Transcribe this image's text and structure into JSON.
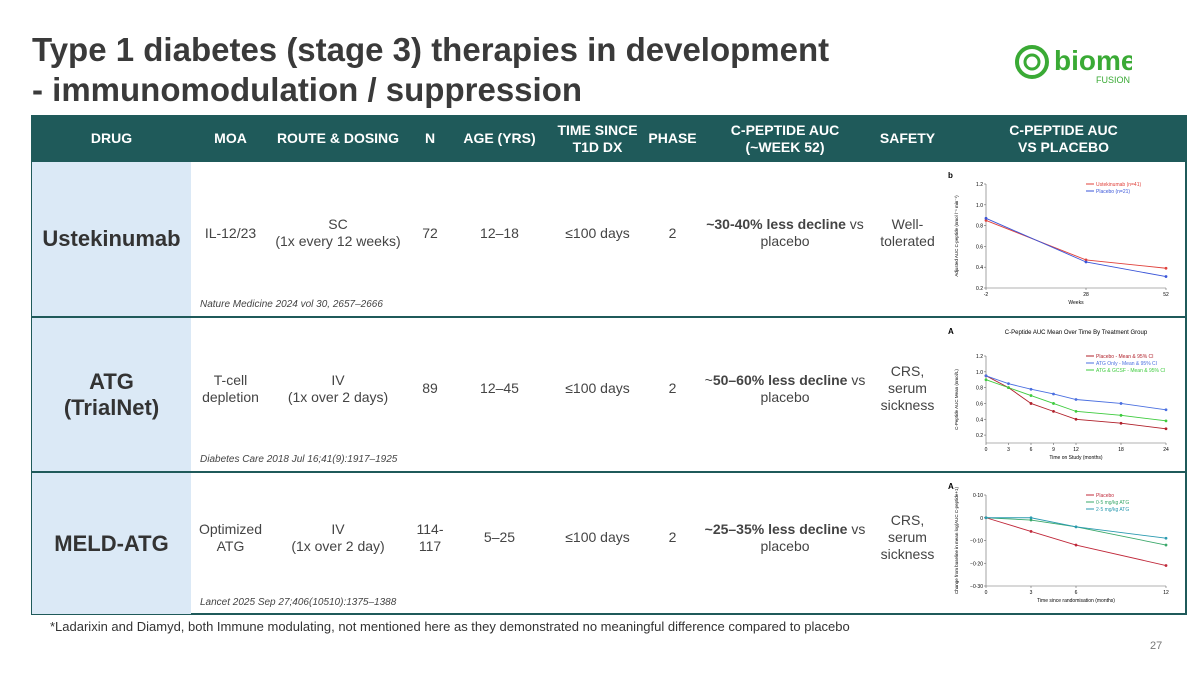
{
  "header": {
    "title": [
      "Type 1 diabetes (stage 3) therapies in development",
      "- immunomodulation / suppression"
    ],
    "logo": {
      "name": "biomea",
      "sub": "FUSION"
    }
  },
  "table": {
    "columns": [
      [
        "DRUG"
      ],
      [
        "MOA"
      ],
      [
        "ROUTE & DOSING"
      ],
      [
        "N"
      ],
      [
        "AGE (YRS)"
      ],
      [
        "TIME SINCE",
        "T1D DX"
      ],
      [
        "PHASE"
      ],
      [
        "C-PEPTIDE AUC",
        "(~WEEK 52)"
      ],
      [
        "SAFETY"
      ],
      [
        "C-PEPTIDE AUC",
        "VS PLACEBO"
      ]
    ],
    "rows": [
      {
        "drug": [
          "Ustekinumab"
        ],
        "moa": [
          "IL-12/23"
        ],
        "route": [
          "SC",
          "(1x every 12 weeks)"
        ],
        "n": [
          "72"
        ],
        "age": [
          "12–18"
        ],
        "time": [
          "≤100 days"
        ],
        "phase": [
          "2"
        ],
        "cpep": {
          "bold": "~30-40% less decline",
          "tail": "vs",
          "line2": "placebo"
        },
        "safety": [
          "Well-",
          "tolerated"
        ],
        "citation": "Nature Medicine 2024 vol 30, 2657–2666",
        "chart": {
          "type": "line",
          "panel": "b",
          "ylabel": "Adjusted AUC C-peptide (nmol l⁻¹ min⁻¹)",
          "xlabel": "Weeks",
          "x": [
            -2,
            28,
            52
          ],
          "xlim": [
            -2,
            52
          ],
          "xticks": [
            -2,
            28,
            52
          ],
          "ylim": [
            0.2,
            1.2
          ],
          "yticks": [
            0.2,
            0.4,
            0.6,
            0.8,
            {
              "value": 1.0,
              "label": "1.0"
            },
            1.2
          ],
          "series": [
            {
              "name": "Ustekinumab (n=41)",
              "color": "#e0403a",
              "values": [
                0.85,
                0.47,
                0.39
              ]
            },
            {
              "name": "Placebo (n=21)",
              "color": "#3a55d8",
              "values": [
                0.87,
                0.45,
                0.31
              ]
            }
          ]
        }
      },
      {
        "drug": [
          "ATG",
          "(TrialNet)"
        ],
        "moa": [
          "T-cell",
          "depletion"
        ],
        "route": [
          "IV",
          "(1x over 2 days)"
        ],
        "n": [
          "89"
        ],
        "age": [
          "12–45"
        ],
        "time": [
          "≤100 days"
        ],
        "phase": [
          "2"
        ],
        "cpep": {
          "prefix": "~",
          "bold": "50–60% less decline",
          "tail": "vs",
          "line2": "placebo"
        },
        "safety": [
          "CRS, serum",
          "sickness"
        ],
        "citation": "Diabetes Care 2018 Jul 16;41(9):1917–1925",
        "chart": {
          "type": "line",
          "panel": "A",
          "title": "C-Peptide AUC Mean Over Time By Treatment Group",
          "ylabel": "C-Peptide AUC Mean (nmol/L)",
          "xlabel": "Time on Study (months)",
          "x": [
            0,
            3,
            6,
            9,
            12,
            18,
            24
          ],
          "xlim": [
            0,
            24
          ],
          "xticks": [
            0,
            3,
            6,
            9,
            12,
            18,
            24
          ],
          "ylim": [
            0.1,
            1.2
          ],
          "yticks": [
            0.2,
            0.4,
            0.6,
            0.8,
            {
              "value": 1.0,
              "label": "1.0"
            },
            1.2
          ],
          "series": [
            {
              "name": "Placebo - Mean & 95% CI",
              "color": "#b0202a",
              "values": [
                0.95,
                0.8,
                0.6,
                0.5,
                0.4,
                0.35,
                0.28
              ]
            },
            {
              "name": "ATG Only - Mean & 95% CI",
              "color": "#4a6fe0",
              "values": [
                0.95,
                0.85,
                0.78,
                0.72,
                0.65,
                0.6,
                0.52
              ]
            },
            {
              "name": "ATG & GCSF - Mean & 95% CI",
              "color": "#3ecb3e",
              "values": [
                0.9,
                0.8,
                0.7,
                0.6,
                0.5,
                0.45,
                0.38
              ]
            }
          ]
        }
      },
      {
        "drug": [
          "MELD-ATG"
        ],
        "moa": [
          "Optimized",
          "ATG"
        ],
        "route": [
          "IV",
          "(1x over 2 day)"
        ],
        "n": [
          "114-",
          "117"
        ],
        "age": [
          "5–25"
        ],
        "time": [
          "≤100 days"
        ],
        "phase": [
          "2"
        ],
        "cpep": {
          "bold": "~25–35% less decline",
          "tail": "vs",
          "line2": "placebo"
        },
        "safety": [
          "CRS, serum",
          "sickness"
        ],
        "citation": "Lancet 2025 Sep 27;406(10510):1375–1388",
        "chart": {
          "type": "line",
          "panel": "A",
          "ylabel": "Change from baseline in mean log(AUC C-peptide+1)",
          "xlabel": "Time since randomisation (months)",
          "x": [
            0,
            3,
            6,
            12
          ],
          "xlim": [
            0,
            12
          ],
          "xticks": [
            0,
            3,
            6,
            12
          ],
          "ylim": [
            -0.3,
            0.1
          ],
          "yticks": [
            {
              "value": -0.3,
              "label": "−0·30"
            },
            {
              "value": -0.2,
              "label": "−0·20"
            },
            {
              "value": -0.1,
              "label": "−0·10"
            },
            {
              "value": 0,
              "label": "0"
            },
            {
              "value": 0.1,
              "label": "0·10"
            }
          ],
          "series": [
            {
              "name": "Placebo",
              "color": "#c0283a",
              "values": [
                0,
                -0.06,
                -0.12,
                -0.21
              ]
            },
            {
              "name": "0·5 mg/kg ATG",
              "color": "#3aa86a",
              "values": [
                0,
                -0.01,
                -0.04,
                -0.12
              ]
            },
            {
              "name": "2·5 mg/kg ATG",
              "color": "#2a9ab0",
              "values": [
                0,
                0,
                -0.04,
                -0.09
              ]
            }
          ]
        }
      }
    ]
  },
  "footnote": "*Ladarixin and Diamyd, both Immune modulating, not mentioned here as they demonstrated no meaningful difference compared to placebo",
  "page_number": "27"
}
